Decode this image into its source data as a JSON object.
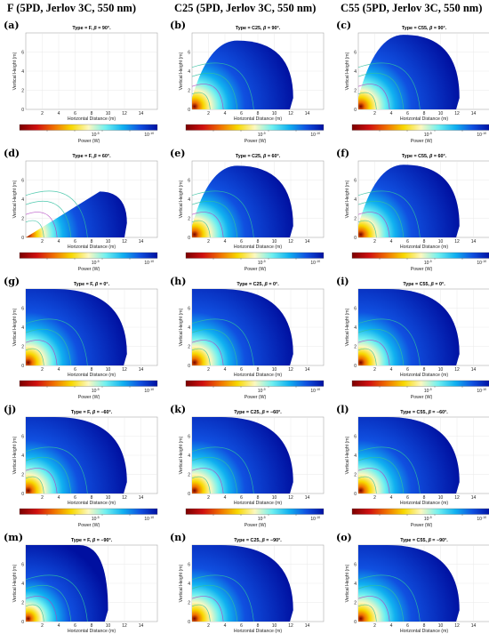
{
  "column_headers": [
    "F (5PD, Jerlov 3C, 550 nm)",
    "C25 (5PD, Jerlov 3C, 550 nm)",
    "C55 (5PD, Jerlov 3C, 550 nm)"
  ],
  "colors": {
    "colormap": [
      "#7a0000",
      "#d01010",
      "#f07000",
      "#f8d800",
      "#fcf8c0",
      "#70f0f0",
      "#10b0f0",
      "#1050e0",
      "#0010a0"
    ],
    "contour": "#30c0a0",
    "contour_inner": "#b040c0"
  },
  "chart_data": [
    {
      "label": "(a)",
      "title": "Type = F, β = 90°.",
      "type": "heatmap",
      "beta_deg": 90,
      "sensor": "F",
      "xlabel": "Horizontal Distance (m)",
      "ylabel": "Vertical Height (m)",
      "xticks": [
        "2",
        "4",
        "6",
        "8",
        "10",
        "12",
        "14"
      ],
      "yticks": [
        "0",
        "2",
        "4",
        "6"
      ],
      "xlim": [
        0,
        16
      ],
      "ylim": [
        0,
        8
      ],
      "colorbar_label": "Power (W)",
      "colorbar_ticks": [
        "10^-5",
        "10^-10"
      ],
      "empty": true
    },
    {
      "label": "(b)",
      "title": "Type = C25, β = 90°.",
      "type": "heatmap",
      "beta_deg": 90,
      "sensor": "C25",
      "xlabel": "Horizontal Distance (m)",
      "ylabel": "Vertical Height (m)",
      "xticks": [
        "2",
        "4",
        "6",
        "8",
        "10",
        "12",
        "14"
      ],
      "yticks": [
        "0",
        "2",
        "4",
        "6"
      ],
      "xlim": [
        0,
        16
      ],
      "ylim": [
        0,
        8
      ],
      "colorbar_label": "Power (W)",
      "colorbar_ticks": [
        "10^-5",
        "10^-10"
      ],
      "coverage": {
        "max_range_m": 12.3,
        "max_height_m": 7.2
      }
    },
    {
      "label": "(c)",
      "title": "Type = C55, β = 90°.",
      "type": "heatmap",
      "beta_deg": 90,
      "sensor": "C55",
      "xlabel": "Horizontal Distance (m)",
      "ylabel": "Vertical Height (m)",
      "xticks": [
        "2",
        "4",
        "6",
        "8",
        "10",
        "12",
        "14"
      ],
      "yticks": [
        "0",
        "2",
        "4",
        "6"
      ],
      "xlim": [
        0,
        16
      ],
      "ylim": [
        0,
        8
      ],
      "colorbar_label": "Power (W)",
      "colorbar_ticks": [
        "10^-5",
        "10^-10"
      ],
      "coverage": {
        "max_range_m": 12.3,
        "max_height_m": 7.8
      }
    },
    {
      "label": "(d)",
      "title": "Type = F, β = 60°.",
      "type": "heatmap",
      "beta_deg": 60,
      "sensor": "F",
      "xlabel": "Horizontal Distance (m)",
      "ylabel": "Vertical Height (m)",
      "xticks": [
        "2",
        "4",
        "6",
        "8",
        "10",
        "12",
        "14"
      ],
      "yticks": [
        "0",
        "2",
        "4",
        "6"
      ],
      "xlim": [
        0,
        16
      ],
      "ylim": [
        0,
        8
      ],
      "colorbar_label": "Power (W)",
      "colorbar_ticks": [
        "10^-5",
        "10^-10"
      ],
      "coverage": {
        "max_range_m": 12.3,
        "max_height_m": 4.8
      }
    },
    {
      "label": "(e)",
      "title": "Type = C25, β = 60°.",
      "type": "heatmap",
      "beta_deg": 60,
      "sensor": "C25",
      "xlabel": "Horizontal Distance (m)",
      "ylabel": "Vertical Height (m)",
      "xticks": [
        "2",
        "4",
        "6",
        "8",
        "10",
        "12",
        "14"
      ],
      "yticks": [
        "0",
        "2",
        "4",
        "6"
      ],
      "xlim": [
        0,
        16
      ],
      "ylim": [
        0,
        8
      ],
      "colorbar_label": "Power (W)",
      "colorbar_ticks": [
        "10^-5",
        "10^-10"
      ],
      "coverage": {
        "max_range_m": 12.3,
        "max_height_m": 7.5
      }
    },
    {
      "label": "(f)",
      "title": "Type = C55, β = 60°.",
      "type": "heatmap",
      "beta_deg": 60,
      "sensor": "C55",
      "xlabel": "Horizontal Distance (m)",
      "ylabel": "Vertical Height (m)",
      "xticks": [
        "2",
        "4",
        "6",
        "8",
        "10",
        "12",
        "14"
      ],
      "yticks": [
        "0",
        "2",
        "4",
        "6"
      ],
      "xlim": [
        0,
        16
      ],
      "ylim": [
        0,
        8
      ],
      "colorbar_label": "Power (W)",
      "colorbar_ticks": [
        "10^-5",
        "10^-10"
      ],
      "coverage": {
        "max_range_m": 12.3,
        "max_height_m": 7.6
      }
    },
    {
      "label": "(g)",
      "title": "Type = F, β = 0°.",
      "type": "heatmap",
      "beta_deg": 0,
      "sensor": "F",
      "xlabel": "Horizontal Distance (m)",
      "ylabel": "Vertical Height (m)",
      "xticks": [
        "2",
        "4",
        "6",
        "8",
        "10",
        "12",
        "14"
      ],
      "yticks": [
        "0",
        "2",
        "4",
        "6"
      ],
      "xlim": [
        0,
        16
      ],
      "ylim": [
        0,
        8
      ],
      "colorbar_label": "Power (W)",
      "colorbar_ticks": [
        "10^-5",
        "10^-10"
      ],
      "coverage": {
        "max_range_m": 12.3,
        "max_height_m": 8.0
      }
    },
    {
      "label": "(h)",
      "title": "Type = C25, β = 0°.",
      "type": "heatmap",
      "beta_deg": 0,
      "sensor": "C25",
      "xlabel": "Horizontal Distance (m)",
      "ylabel": "Vertical Height (m)",
      "xticks": [
        "2",
        "4",
        "6",
        "8",
        "10",
        "12",
        "14"
      ],
      "yticks": [
        "0",
        "2",
        "4",
        "6"
      ],
      "xlim": [
        0,
        16
      ],
      "ylim": [
        0,
        8
      ],
      "colorbar_label": "Power (W)",
      "colorbar_ticks": [
        "10^-5",
        "10^-10"
      ],
      "coverage": {
        "max_range_m": 12.3,
        "max_height_m": 8.0
      }
    },
    {
      "label": "(i)",
      "title": "Type = C55, β = 0°.",
      "type": "heatmap",
      "beta_deg": 0,
      "sensor": "C55",
      "xlabel": "Horizontal Distance (m)",
      "ylabel": "Vertical Height (m)",
      "xticks": [
        "2",
        "4",
        "6",
        "8",
        "10",
        "12",
        "14"
      ],
      "yticks": [
        "0",
        "2",
        "4",
        "6"
      ],
      "xlim": [
        0,
        16
      ],
      "ylim": [
        0,
        8
      ],
      "colorbar_label": "Power (W)",
      "colorbar_ticks": [
        "10^-5",
        "10^-10"
      ],
      "coverage": {
        "max_range_m": 12.3,
        "max_height_m": 8.0
      }
    },
    {
      "label": "(j)",
      "title": "Type = F, β = −60°.",
      "type": "heatmap",
      "beta_deg": -60,
      "sensor": "F",
      "xlabel": "Horizontal Distance (m)",
      "ylabel": "Vertical Height (m)",
      "xticks": [
        "2",
        "4",
        "6",
        "8",
        "10",
        "12",
        "14"
      ],
      "yticks": [
        "0",
        "2",
        "4",
        "6"
      ],
      "xlim": [
        0,
        16
      ],
      "ylim": [
        0,
        8
      ],
      "colorbar_label": "Power (W)",
      "colorbar_ticks": [
        "10^-5",
        "10^-10"
      ],
      "coverage": {
        "max_range_m": 12.3,
        "max_height_m": 8.0
      }
    },
    {
      "label": "(k)",
      "title": "Type = C25, β = −60°.",
      "type": "heatmap",
      "beta_deg": -60,
      "sensor": "C25",
      "xlabel": "Horizontal Distance (m)",
      "ylabel": "Vertical Height (m)",
      "xticks": [
        "2",
        "4",
        "6",
        "8",
        "10",
        "12",
        "14"
      ],
      "yticks": [
        "0",
        "2",
        "4",
        "6"
      ],
      "xlim": [
        0,
        16
      ],
      "ylim": [
        0,
        8
      ],
      "colorbar_label": "Power (W)",
      "colorbar_ticks": [
        "10^-5",
        "10^-10"
      ],
      "coverage": {
        "max_range_m": 12.3,
        "max_height_m": 8.0
      }
    },
    {
      "label": "(l)",
      "title": "Type = C55, β = −60°.",
      "type": "heatmap",
      "beta_deg": -60,
      "sensor": "C55",
      "xlabel": "Horizontal Distance (m)",
      "ylabel": "Vertical Height (m)",
      "xticks": [
        "2",
        "4",
        "6",
        "8",
        "10",
        "12",
        "14"
      ],
      "yticks": [
        "0",
        "2",
        "4",
        "6"
      ],
      "xlim": [
        0,
        16
      ],
      "ylim": [
        0,
        8
      ],
      "colorbar_label": "Power (W)",
      "colorbar_ticks": [
        "10^-5",
        "10^-10"
      ],
      "coverage": {
        "max_range_m": 12.3,
        "max_height_m": 8.0
      }
    },
    {
      "label": "(m)",
      "title": "Type = F, β = −90°.",
      "type": "heatmap",
      "beta_deg": -90,
      "sensor": "F",
      "xlabel": "Horizontal Distance (m)",
      "ylabel": "Vertical Height (m)",
      "xticks": [
        "2",
        "4",
        "6",
        "8",
        "10",
        "12",
        "14"
      ],
      "yticks": [
        "0",
        "2",
        "4",
        "6"
      ],
      "xlim": [
        0,
        16
      ],
      "ylim": [
        0,
        8
      ],
      "colorbar_label": "Power (W)",
      "colorbar_ticks": [
        "10^-5",
        "10^-10"
      ],
      "coverage": {
        "max_range_m": 10.0,
        "max_height_m": 8.0
      }
    },
    {
      "label": "(n)",
      "title": "Type = C25, β = −90°.",
      "type": "heatmap",
      "beta_deg": -90,
      "sensor": "C25",
      "xlabel": "Horizontal Distance (m)",
      "ylabel": "Vertical Height (m)",
      "xticks": [
        "2",
        "4",
        "6",
        "8",
        "10",
        "12",
        "14"
      ],
      "yticks": [
        "0",
        "2",
        "4",
        "6"
      ],
      "xlim": [
        0,
        16
      ],
      "ylim": [
        0,
        8
      ],
      "colorbar_label": "Power (W)",
      "colorbar_ticks": [
        "10^-5",
        "10^-10"
      ],
      "coverage": {
        "max_range_m": 12.3,
        "max_height_m": 8.0
      }
    },
    {
      "label": "(o)",
      "title": "Type = C55, β = −90°.",
      "type": "heatmap",
      "beta_deg": -90,
      "sensor": "C55",
      "xlabel": "Horizontal Distance (m)",
      "ylabel": "Vertical Height (m)",
      "xticks": [
        "2",
        "4",
        "6",
        "8",
        "10",
        "12",
        "14"
      ],
      "yticks": [
        "0",
        "2",
        "4",
        "6"
      ],
      "xlim": [
        0,
        16
      ],
      "ylim": [
        0,
        8
      ],
      "colorbar_label": "Power (W)",
      "colorbar_ticks": [
        "10^-5",
        "10^-10"
      ],
      "coverage": {
        "max_range_m": 12.3,
        "max_height_m": 8.0
      }
    }
  ]
}
